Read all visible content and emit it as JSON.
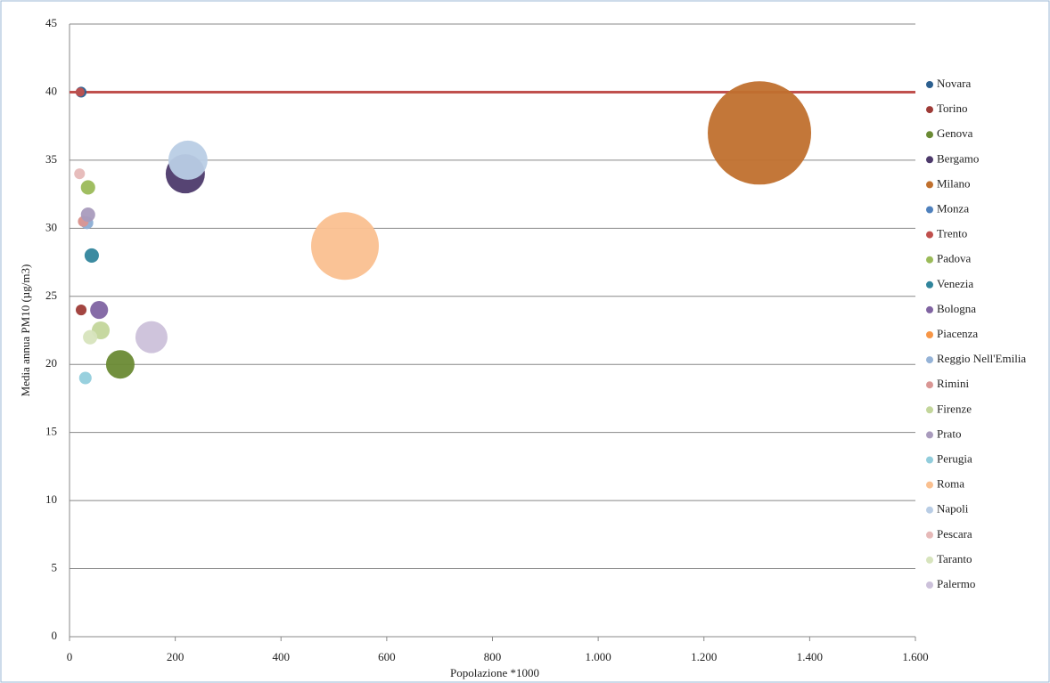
{
  "chart_data": {
    "type": "bubble",
    "x_label": "Popolazione *1000",
    "y_label": "Media annua PM10 (µg/m3)",
    "xlim": [
      0,
      1600
    ],
    "xticks": [
      0,
      200,
      400,
      600,
      800,
      {
        "value": 1000,
        "label": "1.000"
      },
      {
        "value": 1200,
        "label": "1.200"
      },
      {
        "value": 1400,
        "label": "1.400"
      },
      {
        "value": 1600,
        "label": "1.600"
      }
    ],
    "ylim": [
      0,
      45
    ],
    "yticks": [
      0,
      5,
      10,
      15,
      20,
      25,
      30,
      35,
      40,
      45
    ],
    "grid": true,
    "legend": "right",
    "reference_line": {
      "value": 40,
      "color": "#c0504d"
    },
    "series": [
      {
        "name": "Novara",
        "color": "#2c5f8f",
        "x": 22,
        "y": 40,
        "size": 14
      },
      {
        "name": "Torino",
        "color": "#9e3b37",
        "x": 22,
        "y": 24,
        "size": 14
      },
      {
        "name": "Genova",
        "color": "#6a8a34",
        "x": 96,
        "y": 20,
        "size": 99
      },
      {
        "name": "Bergamo",
        "color": "#4d3a6b",
        "x": 219,
        "y": 34,
        "size": 187
      },
      {
        "name": "Milano",
        "color": "#c0702e",
        "x": 1305,
        "y": 37,
        "size": 1300
      },
      {
        "name": "Monza",
        "color": "#4f81bd",
        "x": 33,
        "y": 30.4,
        "size": 19
      },
      {
        "name": "Trento",
        "color": "#c0504d",
        "x": 20,
        "y": 40,
        "size": 10
      },
      {
        "name": "Padova",
        "color": "#9bbb59",
        "x": 35,
        "y": 33,
        "size": 25
      },
      {
        "name": "Venezia",
        "color": "#31859c",
        "x": 42,
        "y": 28,
        "size": 25
      },
      {
        "name": "Bologna",
        "color": "#8064a2",
        "x": 56,
        "y": 24,
        "size": 39
      },
      {
        "name": "Piacenza",
        "color": "#f79646",
        "x": 25,
        "y": 30.5,
        "size": 10
      },
      {
        "name": "Reggio Nell'Emilia",
        "color": "#95b3d7",
        "x": 33,
        "y": 30.4,
        "size": 19
      },
      {
        "name": "Rimini",
        "color": "#d99694",
        "x": 26,
        "y": 30.5,
        "size": 14
      },
      {
        "name": "Firenze",
        "color": "#c3d69b",
        "x": 59,
        "y": 22.5,
        "size": 39
      },
      {
        "name": "Prato",
        "color": "#a99bbd",
        "x": 35,
        "y": 31,
        "size": 25
      },
      {
        "name": "Perugia",
        "color": "#92cddc",
        "x": 30,
        "y": 19,
        "size": 19
      },
      {
        "name": "Roma",
        "color": "#fac090",
        "x": 521,
        "y": 28.7,
        "size": 558
      },
      {
        "name": "Napoli",
        "color": "#b9cde5",
        "x": 224,
        "y": 35,
        "size": 187
      },
      {
        "name": "Pescara",
        "color": "#e6b9b8",
        "x": 19,
        "y": 34,
        "size": 14
      },
      {
        "name": "Taranto",
        "color": "#d7e4bd",
        "x": 39,
        "y": 22,
        "size": 25
      },
      {
        "name": "Palermo",
        "color": "#ccc1da",
        "x": 155,
        "y": 22,
        "size": 125
      }
    ]
  }
}
